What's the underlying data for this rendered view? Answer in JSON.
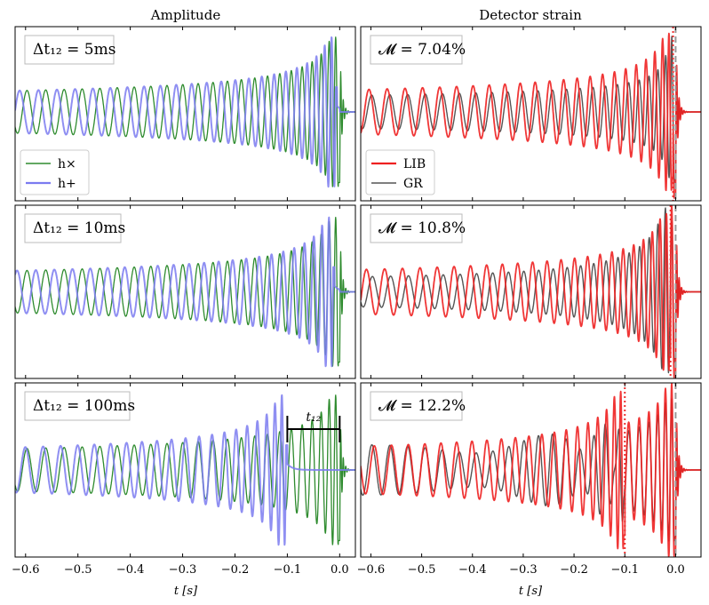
{
  "figure": {
    "column_titles": [
      "Amplitude",
      "Detector strain"
    ],
    "xlabel": "t [s]",
    "xticks": [
      "−0.6",
      "−0.5",
      "−0.4",
      "−0.3",
      "−0.2",
      "−0.1",
      "0.0"
    ],
    "colors": {
      "h_cross": "#2e8b2e",
      "h_plus": "#7b7bf0",
      "lib": "#ee2020",
      "gr": "#555555",
      "marker_dotted": "#ee3030",
      "marker_dashed": "#999999"
    }
  },
  "chart_data": [
    {
      "type": "line",
      "panel": "amplitude",
      "row": 0,
      "annotation": "Δt₁₂ = 5ms",
      "delay_s": 0.005,
      "series": [
        {
          "name": "h×",
          "key": "h_cross"
        },
        {
          "name": "h+",
          "key": "h_plus"
        }
      ],
      "xlim": [
        -0.62,
        0.03
      ],
      "legend_position": "bottom-left"
    },
    {
      "type": "line",
      "panel": "strain",
      "row": 0,
      "annotation": "𝓜 = 7.04%",
      "delay_s": 0.005,
      "series": [
        {
          "name": "LIB",
          "key": "lib"
        },
        {
          "name": "GR",
          "key": "gr"
        }
      ],
      "xlim": [
        -0.62,
        0.05
      ],
      "vlines": [
        {
          "x": -0.005,
          "style": "dotted"
        },
        {
          "x": 0.0,
          "style": "dashed"
        }
      ],
      "legend_position": "bottom-left"
    },
    {
      "type": "line",
      "panel": "amplitude",
      "row": 1,
      "annotation": "Δt₁₂ = 10ms",
      "delay_s": 0.01,
      "series": [
        {
          "key": "h_cross"
        },
        {
          "key": "h_plus"
        }
      ],
      "xlim": [
        -0.62,
        0.03
      ]
    },
    {
      "type": "line",
      "panel": "strain",
      "row": 1,
      "annotation": "𝓜 = 10.8%",
      "delay_s": 0.01,
      "series": [
        {
          "key": "lib"
        },
        {
          "key": "gr"
        }
      ],
      "xlim": [
        -0.62,
        0.05
      ],
      "vlines": [
        {
          "x": -0.01,
          "style": "dotted"
        },
        {
          "x": 0.0,
          "style": "dashed"
        }
      ]
    },
    {
      "type": "line",
      "panel": "amplitude",
      "row": 2,
      "annotation": "Δt₁₂ = 100ms",
      "delay_s": 0.1,
      "bracket_label": "t₁₂",
      "bracket_x": [
        -0.1,
        0.0
      ],
      "series": [
        {
          "key": "h_cross"
        },
        {
          "key": "h_plus"
        }
      ],
      "xlim": [
        -0.62,
        0.03
      ]
    },
    {
      "type": "line",
      "panel": "strain",
      "row": 2,
      "annotation": "𝓜 = 12.2%",
      "delay_s": 0.1,
      "series": [
        {
          "key": "lib"
        },
        {
          "key": "gr"
        }
      ],
      "xlim": [
        -0.62,
        0.05
      ],
      "vlines": [
        {
          "x": -0.1,
          "style": "dotted"
        },
        {
          "x": 0.0,
          "style": "dashed"
        }
      ]
    }
  ]
}
